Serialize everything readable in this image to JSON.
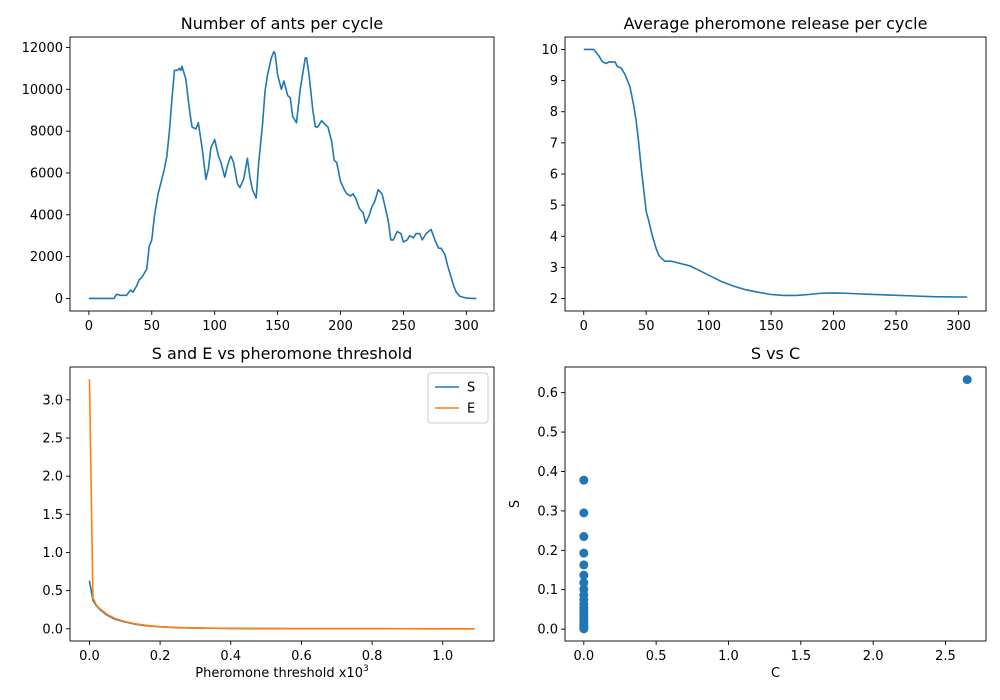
{
  "chart_data": [
    {
      "id": "ants",
      "type": "line",
      "title": "Number of ants per cycle",
      "xlabel": "",
      "ylabel": "",
      "xlim": [
        -15,
        322
      ],
      "ylim": [
        -600,
        12500
      ],
      "xticks": [
        0,
        50,
        100,
        150,
        200,
        250,
        300
      ],
      "xtick_labels": [
        "0",
        "50",
        "100",
        "150",
        "200",
        "250",
        "300"
      ],
      "yticks": [
        0,
        2000,
        4000,
        6000,
        8000,
        10000,
        12000
      ],
      "ytick_labels": [
        "0",
        "2000",
        "4000",
        "6000",
        "8000",
        "10000",
        "12000"
      ],
      "grid": false,
      "series": [
        {
          "color": "#1f77b4",
          "x": [
            0,
            10,
            20,
            22,
            25,
            30,
            33,
            35,
            38,
            40,
            42,
            44,
            46,
            48,
            50,
            52,
            55,
            58,
            60,
            62,
            64,
            66,
            68,
            70,
            72,
            73,
            74,
            75,
            77,
            80,
            82,
            85,
            87,
            88,
            90,
            93,
            95,
            97,
            100,
            103,
            105,
            108,
            110,
            112,
            113,
            115,
            118,
            120,
            123,
            126,
            128,
            130,
            133,
            135,
            138,
            140,
            142,
            145,
            147,
            148,
            150,
            153,
            155,
            158,
            160,
            162,
            165,
            168,
            172,
            173,
            175,
            178,
            180,
            182,
            185,
            188,
            190,
            193,
            195,
            197,
            200,
            203,
            205,
            208,
            210,
            212,
            215,
            218,
            220,
            223,
            225,
            227,
            230,
            233,
            235,
            238,
            240,
            242,
            245,
            248,
            250,
            253,
            255,
            258,
            260,
            263,
            265,
            268,
            270,
            272,
            275,
            278,
            280,
            283,
            285,
            288,
            290,
            292,
            295,
            298,
            300,
            305,
            308
          ],
          "y": [
            0,
            0,
            0,
            200,
            150,
            150,
            400,
            300,
            600,
            900,
            1000,
            1200,
            1400,
            2500,
            2800,
            3900,
            5000,
            5700,
            6200,
            6800,
            8000,
            9500,
            10900,
            10900,
            11000,
            10900,
            11100,
            10900,
            10500,
            9000,
            8200,
            8100,
            8400,
            8000,
            7200,
            5700,
            6200,
            7200,
            7600,
            6800,
            6500,
            5800,
            6300,
            6700,
            6800,
            6500,
            5500,
            5300,
            5700,
            6700,
            5800,
            5200,
            4800,
            6500,
            8300,
            9900,
            10700,
            11500,
            11800,
            11700,
            10700,
            10000,
            10400,
            9700,
            9600,
            8700,
            8400,
            10000,
            11500,
            11500,
            10700,
            9000,
            8200,
            8200,
            8500,
            8300,
            8200,
            7500,
            6600,
            6500,
            5600,
            5200,
            5000,
            4900,
            5000,
            4800,
            4300,
            4100,
            3600,
            4000,
            4400,
            4600,
            5200,
            5000,
            4500,
            3700,
            2800,
            2800,
            3200,
            3100,
            2700,
            2800,
            3000,
            2900,
            3100,
            3100,
            2800,
            3100,
            3200,
            3300,
            2800,
            2400,
            2400,
            2100,
            1600,
            1000,
            600,
            300,
            100,
            50,
            20,
            0,
            0
          ]
        }
      ]
    },
    {
      "id": "pheromone",
      "type": "line",
      "title": "Average pheromone release per cycle",
      "xlabel": "",
      "ylabel": "",
      "xlim": [
        -15,
        322
      ],
      "ylim": [
        1.6,
        10.4
      ],
      "xticks": [
        0,
        50,
        100,
        150,
        200,
        250,
        300
      ],
      "xtick_labels": [
        "0",
        "50",
        "100",
        "150",
        "200",
        "250",
        "300"
      ],
      "yticks": [
        2,
        3,
        4,
        5,
        6,
        7,
        8,
        9,
        10
      ],
      "ytick_labels": [
        "2",
        "3",
        "4",
        "5",
        "6",
        "7",
        "8",
        "9",
        "10"
      ],
      "grid": false,
      "series": [
        {
          "color": "#1f77b4",
          "x": [
            0,
            5,
            8,
            12,
            15,
            18,
            20,
            22,
            25,
            27,
            30,
            33,
            35,
            37,
            40,
            42,
            44,
            46,
            48,
            50,
            52,
            55,
            58,
            60,
            62,
            65,
            70,
            75,
            80,
            85,
            90,
            100,
            110,
            120,
            130,
            140,
            150,
            160,
            165,
            170,
            180,
            190,
            200,
            210,
            220,
            240,
            260,
            280,
            300,
            307
          ],
          "y": [
            10,
            10,
            10,
            9.8,
            9.6,
            9.55,
            9.6,
            9.6,
            9.6,
            9.45,
            9.4,
            9.2,
            9.0,
            8.8,
            8.2,
            7.7,
            7.0,
            6.2,
            5.5,
            4.8,
            4.5,
            4.0,
            3.6,
            3.4,
            3.3,
            3.2,
            3.2,
            3.15,
            3.1,
            3.05,
            2.95,
            2.75,
            2.55,
            2.4,
            2.28,
            2.2,
            2.13,
            2.1,
            2.1,
            2.1,
            2.13,
            2.17,
            2.18,
            2.17,
            2.15,
            2.12,
            2.09,
            2.06,
            2.05,
            2.05
          ]
        }
      ]
    },
    {
      "id": "se",
      "type": "line",
      "title": "S and E vs pheromone threshold",
      "xlabel": "Pheromone threshold x10",
      "xlabel_sup": "3",
      "ylabel": "",
      "xlim": [
        -0.055,
        1.145
      ],
      "ylim": [
        -0.16,
        3.43
      ],
      "xticks": [
        0,
        0.2,
        0.4,
        0.6,
        0.8,
        1.0
      ],
      "xtick_labels": [
        "0.0",
        "0.2",
        "0.4",
        "0.6",
        "0.8",
        "1.0"
      ],
      "yticks": [
        0,
        0.5,
        1.0,
        1.5,
        2.0,
        2.5,
        3.0
      ],
      "ytick_labels": [
        "0.0",
        "0.5",
        "1.0",
        "1.5",
        "2.0",
        "2.5",
        "3.0"
      ],
      "grid": false,
      "legend": "top-right",
      "series": [
        {
          "name": "S",
          "color": "#1f77b4",
          "x": [
            0,
            0.01,
            0.02,
            0.03,
            0.05,
            0.07,
            0.1,
            0.13,
            0.16,
            0.2,
            0.25,
            0.3,
            0.35,
            0.4,
            0.5,
            0.6,
            0.7,
            0.8,
            0.9,
            1.0,
            1.09
          ],
          "y": [
            0.63,
            0.37,
            0.3,
            0.25,
            0.18,
            0.13,
            0.09,
            0.06,
            0.04,
            0.025,
            0.015,
            0.01,
            0.007,
            0.005,
            0.003,
            0.002,
            0.001,
            0.001,
            0.0005,
            0.0003,
            0.0002
          ]
        },
        {
          "name": "E",
          "color": "#ff7f0e",
          "x": [
            0,
            0.01,
            0.02,
            0.03,
            0.05,
            0.07,
            0.1,
            0.13,
            0.16,
            0.2,
            0.25,
            0.3,
            0.35,
            0.4,
            0.5,
            0.6,
            0.7,
            0.8,
            0.9,
            1.0,
            1.09
          ],
          "y": [
            3.27,
            0.4,
            0.31,
            0.26,
            0.19,
            0.14,
            0.095,
            0.065,
            0.045,
            0.028,
            0.017,
            0.011,
            0.008,
            0.006,
            0.003,
            0.002,
            0.001,
            0.001,
            0.0005,
            0.0003,
            0.0002
          ]
        }
      ]
    },
    {
      "id": "svc",
      "type": "scatter",
      "title": "S vs C",
      "xlabel": "C",
      "ylabel": "S",
      "xlim": [
        -0.13,
        2.78
      ],
      "ylim": [
        -0.03,
        0.665
      ],
      "xticks": [
        0,
        0.5,
        1.0,
        1.5,
        2.0,
        2.5
      ],
      "xtick_labels": [
        "0.0",
        "0.5",
        "1.0",
        "1.5",
        "2.0",
        "2.5"
      ],
      "yticks": [
        0,
        0.1,
        0.2,
        0.3,
        0.4,
        0.5,
        0.6
      ],
      "ytick_labels": [
        "0.0",
        "0.1",
        "0.2",
        "0.3",
        "0.4",
        "0.5",
        "0.6"
      ],
      "grid": false,
      "series": [
        {
          "color": "#1f77b4",
          "x": [
            2.65,
            0,
            0,
            0,
            0,
            0,
            0,
            0,
            0,
            0,
            0,
            0,
            0,
            0,
            0,
            0,
            0,
            0,
            0,
            0,
            0,
            0,
            0
          ],
          "y": [
            0.633,
            0.378,
            0.295,
            0.235,
            0.193,
            0.163,
            0.137,
            0.118,
            0.101,
            0.087,
            0.075,
            0.064,
            0.055,
            0.047,
            0.039,
            0.032,
            0.026,
            0.02,
            0.015,
            0.01,
            0.006,
            0.003,
            0.001
          ]
        }
      ]
    }
  ]
}
